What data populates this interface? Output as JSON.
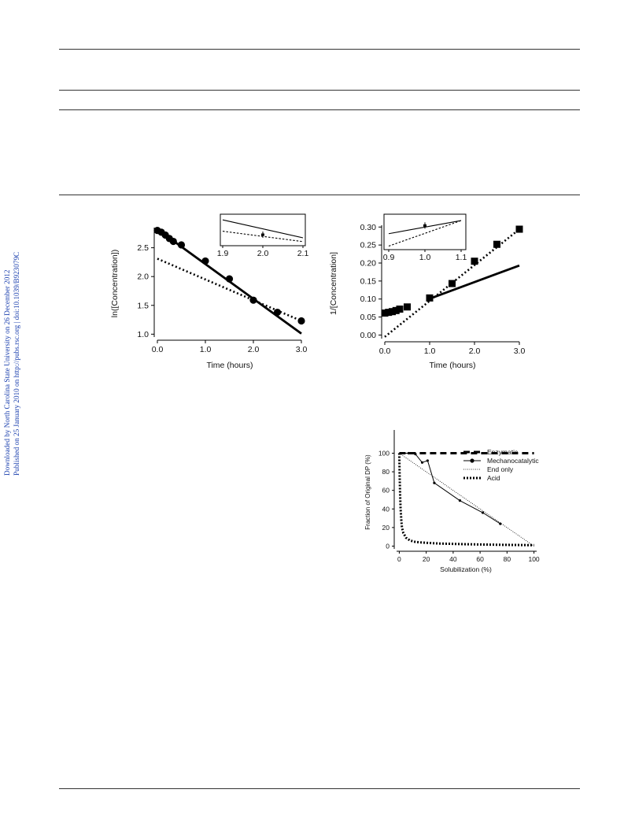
{
  "sidebar": {
    "line1": "Downloaded by North Carolina State University on 26 December 2012",
    "line2": "Published on 25 January 2010 on http://pubs.rsc.org | doi:10.1039/B923079C"
  },
  "chart_data": [
    {
      "type": "scatter",
      "xlabel": "Time (hours)",
      "ylabel": "ln([Concentration])",
      "xlim": [
        0,
        3
      ],
      "ylim": [
        0.95,
        2.85
      ],
      "xticks": [
        "0.0",
        "1.0",
        "2.0",
        "3.0"
      ],
      "yticks": [
        "1.0",
        "1.5",
        "2.0",
        "2.5"
      ],
      "points": {
        "x": [
          0,
          0.083,
          0.167,
          0.25,
          0.333,
          0.5,
          1.0,
          1.5,
          2.0,
          2.5,
          3.0
        ],
        "y": [
          2.8,
          2.77,
          2.72,
          2.66,
          2.61,
          2.55,
          2.27,
          1.96,
          1.59,
          1.38,
          1.23
        ]
      },
      "solid_fit": {
        "x": [
          0,
          3.0
        ],
        "y": [
          2.82,
          1.01
        ]
      },
      "dotted_fit": {
        "x": [
          0,
          3.0
        ],
        "y": [
          2.31,
          1.23
        ]
      },
      "inset": {
        "xlim": [
          1.9,
          2.1
        ],
        "xticks": [
          "1.9",
          "2.0",
          "2.1"
        ],
        "solid": {
          "x": [
            1.9,
            2.1
          ],
          "y": [
            0.82,
            0.25
          ]
        },
        "dotted": {
          "x": [
            1.9,
            2.1
          ],
          "y": [
            0.46,
            0.13
          ]
        },
        "point": {
          "x": 2.0,
          "y": 0.35
        }
      }
    },
    {
      "type": "scatter",
      "xlabel": "Time (hours)",
      "ylabel": "1/[Concentration]",
      "xlim": [
        0,
        3
      ],
      "ylim": [
        -0.01,
        0.305
      ],
      "xticks": [
        "0.0",
        "1.0",
        "2.0",
        "3.0"
      ],
      "yticks": [
        "0.00",
        "0.05",
        "0.10",
        "0.15",
        "0.20",
        "0.25",
        "0.30"
      ],
      "points": {
        "x": [
          0,
          0.083,
          0.167,
          0.25,
          0.333,
          0.5,
          1.0,
          1.5,
          2.0,
          2.5,
          3.0
        ],
        "y": [
          0.061,
          0.063,
          0.065,
          0.068,
          0.072,
          0.078,
          0.103,
          0.143,
          0.205,
          0.252,
          0.294
        ]
      },
      "solid_fit": {
        "x": [
          1.0,
          3.0
        ],
        "y": [
          0.101,
          0.193
        ]
      },
      "dotted_fit": {
        "x": [
          0,
          3.0
        ],
        "y": [
          -0.005,
          0.294
        ]
      },
      "inset": {
        "xlim": [
          0.9,
          1.1
        ],
        "xticks": [
          "0.9",
          "1.0",
          "1.1"
        ],
        "solid": {
          "x": [
            0.9,
            1.1
          ],
          "y": [
            0.45,
            0.82
          ]
        },
        "dotted": {
          "x": [
            0.9,
            1.1
          ],
          "y": [
            0.1,
            0.82
          ]
        },
        "point": {
          "x": 1.0,
          "y": 0.68
        }
      }
    },
    {
      "type": "line",
      "xlabel": "Solubilization (%)",
      "ylabel": "Fraction of Original DP (%)",
      "xlim": [
        -2,
        102
      ],
      "ylim": [
        -3,
        125
      ],
      "xticks": [
        "0",
        "20",
        "40",
        "60",
        "80",
        "100"
      ],
      "yticks": [
        "0",
        "20",
        "40",
        "60",
        "80",
        "100"
      ],
      "legend_position": "right",
      "series": [
        {
          "name": "Enzymatic",
          "style": "dashed-thick",
          "x": [
            0,
            100
          ],
          "y": [
            100,
            100
          ]
        },
        {
          "name": "Mechanocatalytic",
          "style": "solid-markers",
          "x": [
            0,
            7,
            12,
            17,
            21,
            26,
            45,
            62,
            75
          ],
          "y": [
            100,
            100,
            99,
            90,
            92,
            68,
            49,
            36,
            24
          ]
        },
        {
          "name": "End only",
          "style": "dotted-thin",
          "x": [
            0,
            100
          ],
          "y": [
            100,
            0
          ]
        },
        {
          "name": "Acid",
          "style": "dotted-thick",
          "x": [
            0,
            0.3,
            0.6,
            1,
            1.5,
            2,
            3,
            5,
            8,
            12,
            20,
            30,
            50,
            75,
            100
          ],
          "y": [
            100,
            75,
            55,
            40,
            28,
            20,
            14,
            9,
            6,
            4.5,
            3.5,
            2.8,
            2,
            1.4,
            1
          ]
        }
      ]
    }
  ]
}
